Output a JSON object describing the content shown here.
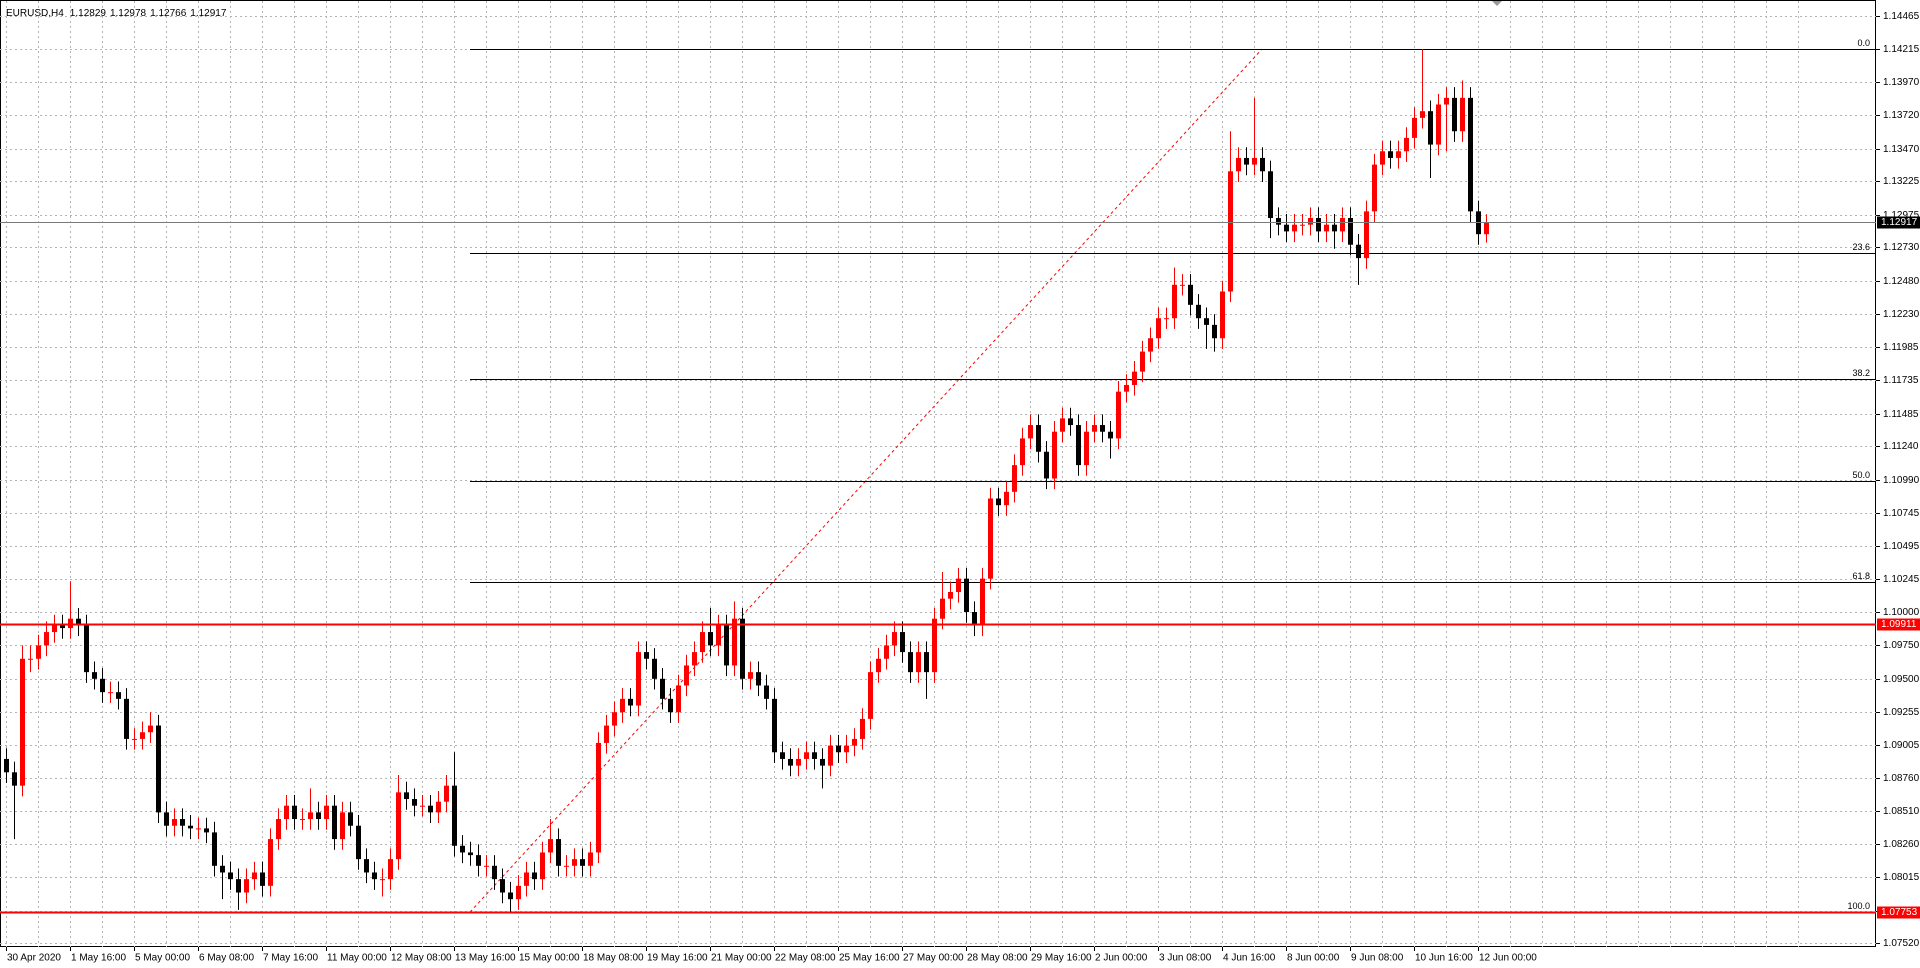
{
  "chart_data": {
    "type": "candlestick",
    "symbol": "EURUSD,H4",
    "up_color": "#ff0000",
    "down_color": "#000000",
    "grid": true,
    "ylim": [
      1.07492,
      1.14575
    ],
    "yticks": [
      1.14465,
      1.14215,
      {
        "value": 1.1397,
        "label": "1.13970"
      },
      {
        "value": 1.1372,
        "label": "1.13720"
      },
      {
        "value": 1.1347,
        "label": "1.13470"
      },
      1.13225,
      1.12975,
      {
        "value": 1.1273,
        "label": "1.12730"
      },
      {
        "value": 1.1248,
        "label": "1.12480"
      },
      {
        "value": 1.1223,
        "label": "1.12230"
      },
      1.11985,
      1.11735,
      1.11485,
      {
        "value": 1.1124,
        "label": "1.11240"
      },
      {
        "value": 1.1099,
        "label": "1.10990"
      },
      1.10745,
      1.10495,
      1.10245,
      {
        "value": 1.1,
        "label": "1.10000"
      },
      {
        "value": 1.0975,
        "label": "1.09750"
      },
      {
        "value": 1.095,
        "label": "1.09500"
      },
      1.09255,
      1.09005,
      {
        "value": 1.0876,
        "label": "1.08760"
      },
      {
        "value": 1.0851,
        "label": "1.08510"
      },
      {
        "value": 1.0826,
        "label": "1.08260"
      },
      1.08015,
      1.07765,
      {
        "value": 1.0752,
        "label": "1.07520"
      }
    ],
    "categories": [
      "30 Apr 2020",
      null,
      null,
      null,
      null,
      null,
      null,
      null,
      "1 May 16:00",
      null,
      null,
      null,
      null,
      null,
      null,
      null,
      "5 May 00:00",
      null,
      null,
      null,
      null,
      null,
      null,
      null,
      "6 May 08:00",
      null,
      null,
      null,
      null,
      null,
      null,
      null,
      "7 May 16:00",
      null,
      null,
      null,
      null,
      null,
      null,
      null,
      "11 May 00:00",
      null,
      null,
      null,
      null,
      null,
      null,
      null,
      "12 May 08:00",
      null,
      null,
      null,
      null,
      null,
      null,
      null,
      "13 May 16:00",
      null,
      null,
      null,
      null,
      null,
      null,
      null,
      "15 May 00:00",
      null,
      null,
      null,
      null,
      null,
      null,
      null,
      "18 May 08:00",
      null,
      null,
      null,
      null,
      null,
      null,
      null,
      "19 May 16:00",
      null,
      null,
      null,
      null,
      null,
      null,
      null,
      "21 May 00:00",
      null,
      null,
      null,
      null,
      null,
      null,
      null,
      "22 May 08:00",
      null,
      null,
      null,
      null,
      null,
      null,
      null,
      "25 May 16:00",
      null,
      null,
      null,
      null,
      null,
      null,
      null,
      "27 May 00:00",
      null,
      null,
      null,
      null,
      null,
      null,
      null,
      "28 May 08:00",
      null,
      null,
      null,
      null,
      null,
      null,
      null,
      "29 May 16:00",
      null,
      null,
      null,
      null,
      null,
      null,
      null,
      "2 Jun 00:00",
      null,
      null,
      null,
      null,
      null,
      null,
      null,
      "3 Jun 08:00",
      null,
      null,
      null,
      null,
      null,
      null,
      null,
      "4 Jun 16:00",
      null,
      null,
      null,
      null,
      null,
      null,
      null,
      "8 Jun 00:00",
      null,
      null,
      null,
      null,
      null,
      null,
      null,
      "9 Jun 08:00",
      null,
      null,
      null,
      null,
      null,
      null,
      null,
      "10 Jun 16:00",
      null,
      null,
      null,
      null,
      null,
      null,
      null,
      "12 Jun 00:00",
      null
    ],
    "open": [
      1.089,
      1.088,
      1.087,
      1.0965,
      1.0965,
      1.0975,
      1.0985,
      1.099,
      1.0988,
      1.0995,
      1.099,
      1.0955,
      1.095,
      1.094,
      1.094,
      1.0935,
      1.0905,
      1.0905,
      1.091,
      1.0915,
      1.085,
      1.084,
      1.0845,
      1.084,
      1.0838,
      1.0838,
      1.0835,
      1.081,
      1.0805,
      1.08,
      1.079,
      1.08,
      1.0805,
      1.0795,
      1.083,
      1.0845,
      1.0855,
      1.0845,
      1.0845,
      1.085,
      1.0845,
      1.0855,
      1.083,
      1.085,
      1.084,
      1.0815,
      1.0805,
      1.08,
      1.08,
      1.0815,
      1.0865,
      1.086,
      1.0855,
      1.0855,
      1.085,
      1.0858,
      1.087,
      1.0825,
      1.082,
      1.0818,
      1.081,
      1.081,
      1.08,
      1.079,
      1.0785,
      1.0795,
      1.0805,
      1.08,
      1.082,
      1.083,
      1.081,
      1.081,
      1.0815,
      1.081,
      1.082,
      1.0902,
      1.0915,
      1.0925,
      1.0935,
      1.093,
      1.097,
      1.0965,
      1.095,
      1.0935,
      1.0925,
      1.0945,
      1.096,
      1.097,
      1.0985,
      1.0975,
      1.099,
      1.096,
      1.0995,
      1.095,
      1.0955,
      1.0945,
      1.0935,
      1.0895,
      1.089,
      1.0885,
      1.089,
      1.0895,
      1.089,
      1.0885,
      1.09,
      1.0895,
      1.09,
      1.0905,
      1.092,
      1.0955,
      1.0965,
      1.0975,
      1.0985,
      1.097,
      1.0955,
      1.097,
      1.0955,
      1.0995,
      1.101,
      1.1015,
      1.1025,
      1.1,
      1.099,
      1.1025,
      1.1085,
      1.108,
      1.109,
      1.111,
      1.113,
      1.114,
      1.112,
      1.11,
      1.1135,
      1.1145,
      1.114,
      1.111,
      1.1135,
      1.114,
      1.1135,
      1.113,
      1.1165,
      1.117,
      1.118,
      1.1195,
      1.1205,
      1.122,
      1.122,
      1.1245,
      1.1245,
      1.123,
      1.122,
      1.1215,
      1.1205,
      1.124,
      1.133,
      1.134,
      1.1335,
      1.134,
      1.133,
      1.1295,
      1.129,
      1.1285,
      1.129,
      1.129,
      1.1295,
      1.1285,
      1.129,
      1.1285,
      1.1295,
      1.1275,
      1.1265,
      1.13,
      1.1335,
      1.1345,
      1.134,
      1.1345,
      1.1355,
      1.137,
      1.1375,
      1.135,
      1.138,
      1.1385,
      1.136,
      1.1385,
      1.13,
      1.12829
    ],
    "high": [
      1.0898,
      1.0888,
      1.0975,
      1.0975,
      1.0983,
      1.0993,
      1.0998,
      1.0998,
      1.1023,
      1.1003,
      1.0998,
      1.0963,
      1.0958,
      1.0948,
      1.0948,
      1.0943,
      1.0913,
      1.0918,
      1.0925,
      1.0923,
      1.0858,
      1.0853,
      1.0853,
      1.0848,
      1.0846,
      1.0846,
      1.0843,
      1.0818,
      1.0813,
      1.0808,
      1.0808,
      1.0813,
      1.0813,
      1.0838,
      1.0853,
      1.0863,
      1.0863,
      1.0853,
      1.0868,
      1.0858,
      1.0863,
      1.0863,
      1.0858,
      1.0858,
      1.0848,
      1.0823,
      1.0813,
      1.0808,
      1.0823,
      1.0878,
      1.0873,
      1.0868,
      1.0863,
      1.0863,
      1.0866,
      1.0878,
      1.0895,
      1.0833,
      1.0828,
      1.0826,
      1.0818,
      1.0818,
      1.0808,
      1.0798,
      1.0803,
      1.0813,
      1.0813,
      1.0828,
      1.0845,
      1.0838,
      1.0818,
      1.0823,
      1.0823,
      1.0828,
      1.091,
      1.0923,
      1.0933,
      1.0943,
      1.0943,
      1.0978,
      1.0978,
      1.0973,
      1.0958,
      1.0943,
      1.0953,
      1.0968,
      1.0978,
      1.0993,
      1.1003,
      1.0998,
      1.0998,
      1.1008,
      1.1003,
      1.0963,
      1.0963,
      1.0953,
      1.0943,
      1.0903,
      1.0898,
      1.0898,
      1.0903,
      1.0903,
      1.0898,
      1.0908,
      1.0908,
      1.0908,
      1.0913,
      1.0928,
      1.0963,
      1.0973,
      1.0983,
      1.0993,
      1.0993,
      1.0978,
      1.0978,
      1.0978,
      1.1003,
      1.103,
      1.1023,
      1.1033,
      1.1033,
      1.1008,
      1.1033,
      1.1093,
      1.1093,
      1.1098,
      1.1118,
      1.1138,
      1.1148,
      1.1148,
      1.1128,
      1.1143,
      1.1153,
      1.1153,
      1.1148,
      1.1143,
      1.1148,
      1.1148,
      1.1143,
      1.1173,
      1.1178,
      1.1188,
      1.1203,
      1.1213,
      1.1228,
      1.1228,
      1.1258,
      1.1253,
      1.1253,
      1.1238,
      1.1228,
      1.1223,
      1.1248,
      1.136,
      1.1348,
      1.1348,
      1.1385,
      1.1348,
      1.1338,
      1.1303,
      1.1298,
      1.1298,
      1.1298,
      1.1303,
      1.1303,
      1.1298,
      1.1298,
      1.1303,
      1.1303,
      1.1283,
      1.1308,
      1.1343,
      1.1353,
      1.1353,
      1.1353,
      1.1363,
      1.1378,
      1.14215,
      1.1383,
      1.1388,
      1.1393,
      1.1393,
      1.1398,
      1.1393,
      1.1308,
      1.12978
    ],
    "low": [
      1.0872,
      1.083,
      1.0862,
      1.0955,
      1.0957,
      1.0967,
      1.0977,
      1.098,
      1.098,
      1.0982,
      1.0947,
      1.0942,
      1.0932,
      1.0932,
      1.0927,
      1.0897,
      1.0897,
      1.0897,
      1.0902,
      1.0842,
      1.0832,
      1.0832,
      1.0832,
      1.083,
      1.083,
      1.0827,
      1.0802,
      1.0785,
      1.0792,
      1.0777,
      1.0782,
      1.0792,
      1.0787,
      1.0787,
      1.0822,
      1.0837,
      1.0837,
      1.0837,
      1.0837,
      1.0837,
      1.0837,
      1.0822,
      1.0822,
      1.0832,
      1.0807,
      1.0797,
      1.0792,
      1.0787,
      1.0792,
      1.0807,
      1.0852,
      1.0847,
      1.0847,
      1.0842,
      1.0842,
      1.085,
      1.0817,
      1.0812,
      1.081,
      1.0802,
      1.0802,
      1.0792,
      1.0782,
      1.0775,
      1.0777,
      1.0787,
      1.0792,
      1.0792,
      1.0812,
      1.0802,
      1.0802,
      1.0802,
      1.0802,
      1.0802,
      1.0812,
      1.0894,
      1.0907,
      1.0917,
      1.0922,
      1.0922,
      1.0957,
      1.0942,
      1.0927,
      1.0917,
      1.0917,
      1.0937,
      1.0952,
      1.0962,
      1.0967,
      1.0967,
      1.0952,
      1.0952,
      1.0942,
      1.0942,
      1.0937,
      1.0927,
      1.0887,
      1.0882,
      1.0877,
      1.0877,
      1.0882,
      1.0882,
      1.0868,
      1.0877,
      1.0887,
      1.0887,
      1.0892,
      1.0897,
      1.0912,
      1.0947,
      1.0957,
      1.0967,
      1.0962,
      1.0947,
      1.0947,
      1.0935,
      1.0947,
      1.0987,
      1.1002,
      1.1007,
      1.0992,
      1.0982,
      1.0982,
      1.1017,
      1.1072,
      1.1072,
      1.1082,
      1.1102,
      1.1122,
      1.1112,
      1.1092,
      1.1092,
      1.1127,
      1.1132,
      1.1102,
      1.1102,
      1.1127,
      1.1127,
      1.1115,
      1.1122,
      1.1157,
      1.1162,
      1.1172,
      1.1187,
      1.1197,
      1.1212,
      1.1212,
      1.1237,
      1.1222,
      1.1212,
      1.1197,
      1.1195,
      1.1197,
      1.1232,
      1.1322,
      1.1327,
      1.1327,
      1.1322,
      1.128,
      1.1282,
      1.1277,
      1.1277,
      1.1282,
      1.1282,
      1.1277,
      1.1277,
      1.1272,
      1.1277,
      1.1267,
      1.1245,
      1.1257,
      1.1292,
      1.1327,
      1.1332,
      1.1332,
      1.1337,
      1.1347,
      1.1362,
      1.1325,
      1.1342,
      1.1345,
      1.1352,
      1.1352,
      1.1292,
      1.1275,
      1.12766
    ],
    "close": [
      1.088,
      1.087,
      1.0965,
      1.0965,
      1.0975,
      1.0985,
      1.099,
      1.0988,
      1.0995,
      1.099,
      1.0955,
      1.095,
      1.094,
      1.094,
      1.0935,
      1.0905,
      1.0905,
      1.091,
      1.0915,
      1.085,
      1.084,
      1.0845,
      1.084,
      1.0838,
      1.0838,
      1.0835,
      1.081,
      1.0805,
      1.08,
      1.079,
      1.08,
      1.0805,
      1.0795,
      1.083,
      1.0845,
      1.0855,
      1.0845,
      1.0845,
      1.085,
      1.0845,
      1.0855,
      1.083,
      1.085,
      1.084,
      1.0815,
      1.0805,
      1.08,
      1.08,
      1.0815,
      1.0865,
      1.086,
      1.0855,
      1.0855,
      1.085,
      1.0858,
      1.087,
      1.0825,
      1.082,
      1.0818,
      1.081,
      1.081,
      1.08,
      1.079,
      1.0785,
      1.0795,
      1.0805,
      1.08,
      1.082,
      1.083,
      1.081,
      1.081,
      1.0815,
      1.081,
      1.082,
      1.0902,
      1.0915,
      1.0925,
      1.0935,
      1.093,
      1.097,
      1.0965,
      1.095,
      1.0935,
      1.0925,
      1.0945,
      1.096,
      1.097,
      1.0985,
      1.0975,
      1.099,
      1.096,
      1.0995,
      1.095,
      1.0955,
      1.0945,
      1.0935,
      1.0895,
      1.089,
      1.0885,
      1.089,
      1.0895,
      1.089,
      1.0885,
      1.09,
      1.0895,
      1.09,
      1.0905,
      1.092,
      1.0955,
      1.0965,
      1.0975,
      1.0985,
      1.097,
      1.0955,
      1.097,
      1.0955,
      1.0995,
      1.101,
      1.1015,
      1.1025,
      1.1,
      1.099,
      1.1025,
      1.1085,
      1.108,
      1.109,
      1.111,
      1.113,
      1.114,
      1.112,
      1.11,
      1.1135,
      1.1145,
      1.114,
      1.111,
      1.1135,
      1.114,
      1.1135,
      1.113,
      1.1165,
      1.117,
      1.118,
      1.1195,
      1.1205,
      1.122,
      1.122,
      1.1245,
      1.1245,
      1.123,
      1.122,
      1.1215,
      1.1205,
      1.124,
      1.133,
      1.134,
      1.1335,
      1.134,
      1.133,
      1.1295,
      1.129,
      1.1285,
      1.129,
      1.129,
      1.1295,
      1.1285,
      1.129,
      1.1285,
      1.1295,
      1.1275,
      1.1265,
      1.13,
      1.1335,
      1.1345,
      1.134,
      1.1345,
      1.1355,
      1.137,
      1.1375,
      1.135,
      1.138,
      1.1385,
      1.136,
      1.1385,
      1.13,
      1.12829,
      1.12917
    ],
    "hlines": [
      {
        "value": 1.09911,
        "color": "#ff0000"
      },
      {
        "value": 1.07753,
        "color": "#ff0000"
      }
    ],
    "fibonacci": {
      "high": 1.14215,
      "low": 1.07753,
      "color": "#000000",
      "trend_color": "#ff0000",
      "levels": [
        {
          "value": 0,
          "label": "0.0"
        },
        23.6,
        38.2,
        {
          "value": 50,
          "label": "50.0"
        },
        61.8,
        {
          "value": 100,
          "label": "100.0"
        }
      ]
    }
  }
}
